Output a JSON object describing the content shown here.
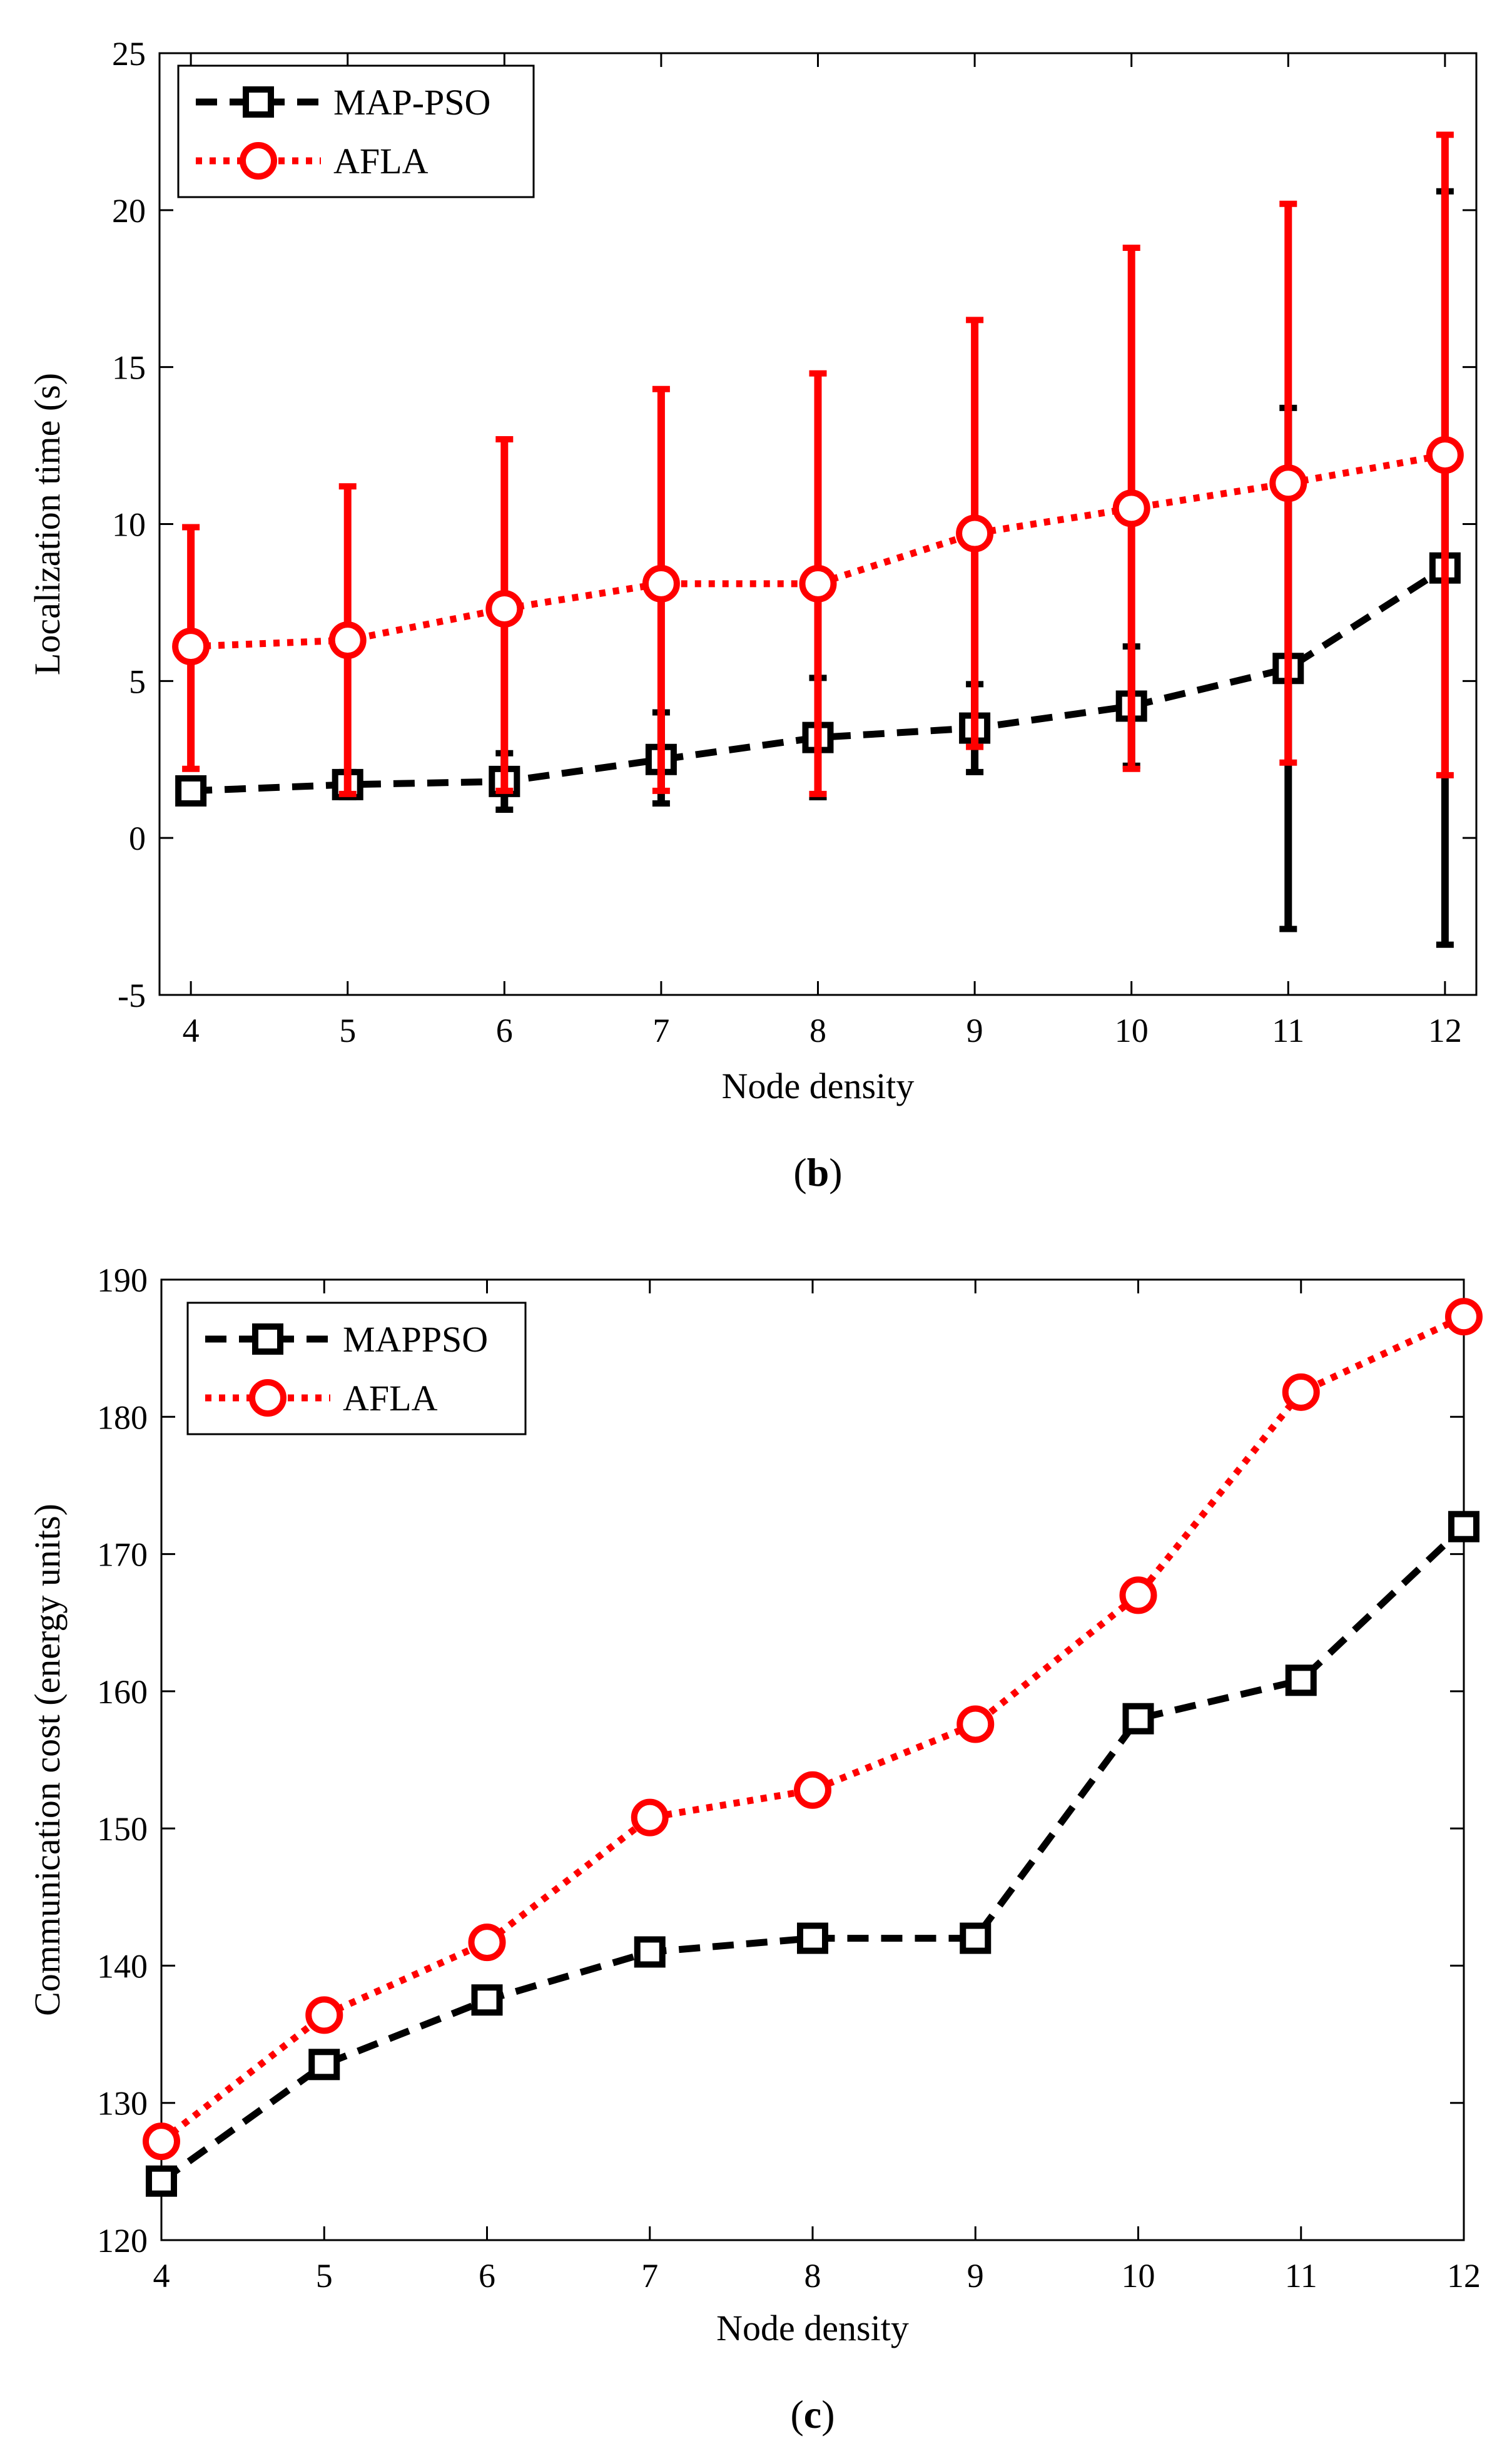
{
  "colors": {
    "map_pso": "#000000",
    "afla": "#ff0000"
  },
  "chart_data": [
    {
      "id": "b",
      "type": "line",
      "caption_letter": "b",
      "caption_open": "(",
      "caption_close": ")",
      "xlabel": "Node density",
      "ylabel": "Localization time (s)",
      "xlim": [
        3.8,
        12.2
      ],
      "ylim": [
        -5,
        25
      ],
      "x": [
        4,
        5,
        6,
        7,
        8,
        9,
        10,
        11,
        12
      ],
      "xticks": [
        "4",
        "5",
        "6",
        "7",
        "8",
        "9",
        "10",
        "11",
        "12"
      ],
      "yticks": [
        "-5",
        "0",
        "5",
        "10",
        "15",
        "20",
        "25"
      ],
      "yticks_values": [
        -5,
        0,
        5,
        10,
        15,
        20,
        25
      ],
      "legend_position": "top-left",
      "series": [
        {
          "name": "MAP-PSO",
          "color": "#000000",
          "marker": "square",
          "style": "dashed",
          "values": [
            1.5,
            1.7,
            1.8,
            2.5,
            3.2,
            3.5,
            4.2,
            5.4,
            8.6
          ],
          "err_low": [
            1.3,
            1.3,
            0.9,
            1.1,
            1.3,
            2.1,
            2.3,
            -2.9,
            -3.4
          ],
          "err_high": [
            1.7,
            2.1,
            2.7,
            4.0,
            5.1,
            4.9,
            6.1,
            13.7,
            20.6
          ]
        },
        {
          "name": "AFLA",
          "color": "#ff0000",
          "marker": "circle",
          "style": "dotted",
          "values": [
            6.1,
            6.3,
            7.3,
            8.1,
            8.1,
            9.7,
            10.5,
            11.3,
            12.2
          ],
          "err_low": [
            2.2,
            1.4,
            1.5,
            1.5,
            1.4,
            2.9,
            2.2,
            2.4,
            2.0
          ],
          "err_high": [
            9.9,
            11.2,
            12.7,
            14.3,
            14.8,
            16.5,
            18.8,
            20.2,
            22.4
          ]
        }
      ]
    },
    {
      "id": "c",
      "type": "line",
      "caption_letter": "c",
      "caption_open": "(",
      "caption_close": ")",
      "xlabel": "Node density",
      "ylabel": "Communication cost (energy units)",
      "xlim": [
        4,
        12
      ],
      "ylim": [
        120,
        190
      ],
      "x": [
        4,
        5,
        6,
        7,
        8,
        9,
        10,
        11,
        12
      ],
      "xticks": [
        "4",
        "5",
        "6",
        "7",
        "8",
        "9",
        "10",
        "11",
        "12"
      ],
      "yticks": [
        "120",
        "130",
        "140",
        "150",
        "160",
        "170",
        "180",
        "190"
      ],
      "yticks_values": [
        120,
        130,
        140,
        150,
        160,
        170,
        180,
        190
      ],
      "legend_position": "top-left",
      "series": [
        {
          "name": "MAPPSO",
          "color": "#000000",
          "marker": "square",
          "style": "dashed",
          "values": [
            124.3,
            132.8,
            137.5,
            141.0,
            142.0,
            142.0,
            158.0,
            160.8,
            172.0
          ]
        },
        {
          "name": "AFLA",
          "color": "#ff0000",
          "marker": "circle",
          "style": "dotted",
          "values": [
            127.2,
            136.4,
            141.7,
            150.8,
            152.8,
            157.6,
            167.0,
            181.8,
            187.3
          ]
        }
      ]
    }
  ]
}
